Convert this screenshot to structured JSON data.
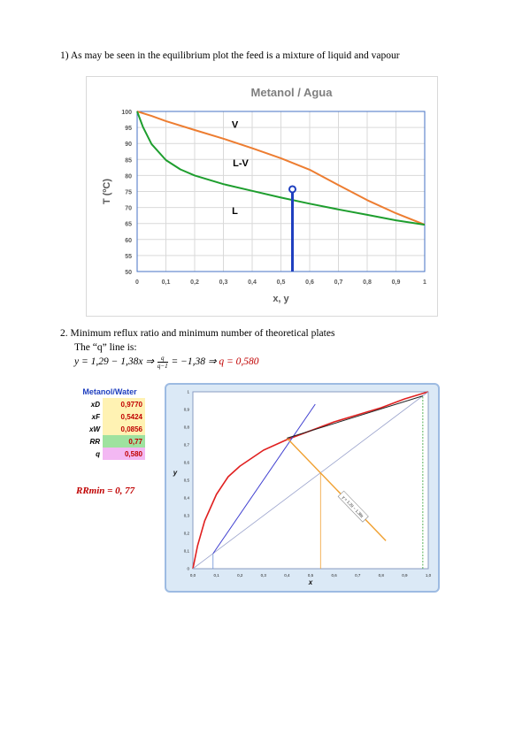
{
  "section1": {
    "text": "1) As may be seen in the equilibrium plot the feed is a mixture of liquid and vapour"
  },
  "section2": {
    "heading": "2. Minimum reflux ratio and minimum number of theoretical plates",
    "qline_intro": "The “q” line is:",
    "equation": {
      "part1": "y = 1,29 − 1,38x  ⇒ ",
      "frac_num": "q",
      "frac_den": "q−1",
      "part2": " = −1,38  ⇒ ",
      "q_result": "q = 0,580"
    }
  },
  "table": {
    "title": "Metanol/Water",
    "rows": [
      {
        "label": "xD",
        "value": "0,9770",
        "color": "#fff2b3"
      },
      {
        "label": "xF",
        "value": "0,5424",
        "color": "#fff2b3"
      },
      {
        "label": "xW",
        "value": "0,0856",
        "color": "#fff2b3"
      },
      {
        "label": "RR",
        "value": "0,77",
        "color": "#9fe29f"
      },
      {
        "label": "q",
        "value": "0,580",
        "color": "#f3b8f3"
      }
    ]
  },
  "rrmin_text": "RRmin = 0, 77",
  "chart_data": [
    {
      "type": "line",
      "title": "Metanol / Agua",
      "xlabel": "x, y",
      "ylabel": "T (ºC)",
      "xlim": [
        0,
        1
      ],
      "ylim": [
        50,
        100
      ],
      "xticks": [
        "0",
        "0,1",
        "0,2",
        "0,3",
        "0,4",
        "0,5",
        "0,6",
        "0,7",
        "0,8",
        "0,9",
        "1"
      ],
      "yticks": [
        "50",
        "55",
        "60",
        "65",
        "70",
        "75",
        "80",
        "85",
        "90",
        "95",
        "100"
      ],
      "region_labels": [
        {
          "text": "V",
          "x": 0.34,
          "y": 96
        },
        {
          "text": "L-V",
          "x": 0.36,
          "y": 84
        },
        {
          "text": "L",
          "x": 0.34,
          "y": 69
        }
      ],
      "series": [
        {
          "color": "#ed7d31",
          "x": [
            0,
            0.05,
            0.1,
            0.2,
            0.3,
            0.4,
            0.5,
            0.6,
            0.7,
            0.8,
            0.9,
            1.0
          ],
          "y": [
            100,
            98.6,
            97.0,
            94.2,
            91.5,
            88.5,
            85.4,
            81.8,
            77.0,
            72.3,
            68.2,
            64.6
          ]
        },
        {
          "color": "#1e9e2e",
          "x": [
            0,
            0.02,
            0.05,
            0.1,
            0.15,
            0.2,
            0.3,
            0.4,
            0.5,
            0.6,
            0.7,
            0.8,
            0.9,
            1.0
          ],
          "y": [
            100,
            95.2,
            89.8,
            84.8,
            81.9,
            80.0,
            77.3,
            75.2,
            73.1,
            71.2,
            69.4,
            67.7,
            66.0,
            64.6
          ]
        }
      ],
      "feed_marker": {
        "x": 0.54,
        "y": 75.7,
        "color": "#1f3fbf"
      }
    },
    {
      "type": "line",
      "xlabel": "x",
      "ylabel": "y",
      "xlim": [
        0,
        1
      ],
      "ylim": [
        0,
        1
      ],
      "xticks": [
        "0,0",
        "0,1",
        "0,2",
        "0,3",
        "0,4",
        "0,5",
        "0,6",
        "0,7",
        "0,8",
        "0,9",
        "1,0"
      ],
      "yticks": [
        "0",
        "0,1",
        "0,2",
        "0,3",
        "0,4",
        "0,5",
        "0,6",
        "0,7",
        "0,8",
        "0,9",
        "1"
      ],
      "annotation": "y = 1,29 − 1,38x",
      "series": [
        {
          "color": "#e02020",
          "x": [
            0,
            0.02,
            0.05,
            0.1,
            0.15,
            0.2,
            0.3,
            0.4,
            0.5,
            0.6,
            0.7,
            0.8,
            0.9,
            1.0
          ],
          "y": [
            0,
            0.13,
            0.27,
            0.42,
            0.52,
            0.58,
            0.67,
            0.73,
            0.78,
            0.83,
            0.87,
            0.91,
            0.96,
            1.0
          ]
        },
        {
          "color": "#9aa3cc",
          "x": [
            0,
            1
          ],
          "y": [
            0,
            1
          ]
        },
        {
          "color": "#4040d0",
          "x": [
            0.0856,
            0.52
          ],
          "y": [
            0.0856,
            0.93
          ]
        },
        {
          "color": "#f0a030",
          "x": [
            0.4,
            0.82
          ],
          "y": [
            0.738,
            0.158
          ]
        },
        {
          "color": "#222222",
          "x": [
            0.4,
            0.977
          ],
          "y": [
            0.738,
            0.977
          ]
        }
      ],
      "verticals": [
        {
          "x": 0.0856,
          "color": "#6a8fd8"
        },
        {
          "x": 0.5424,
          "color": "#f0a030"
        },
        {
          "x": 0.977,
          "color": "#2e9e2e"
        }
      ]
    }
  ]
}
